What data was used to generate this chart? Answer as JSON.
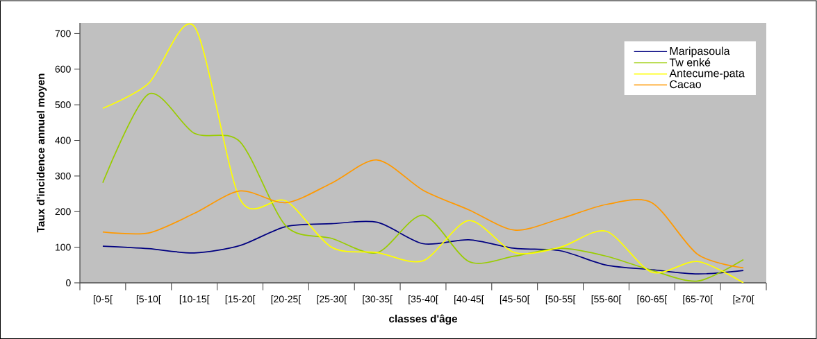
{
  "chart_data": {
    "type": "line",
    "xlabel": "classes d'âge",
    "ylabel": "Taux d'incidence annuel moyen",
    "categories": [
      "[0-5[",
      "[5-10[",
      "[10-15[",
      "[15-20[",
      "[20-25[",
      "[25-30[",
      "[30-35[",
      "[35-40[",
      "[40-45[",
      "[45-50[",
      "[50-55[",
      "[55-60[",
      "[60-65[",
      "[65-70[",
      "[≥70["
    ],
    "series": [
      {
        "name": "Maripasoula",
        "color": "#000080",
        "values": [
          103,
          96,
          84,
          105,
          158,
          166,
          170,
          110,
          121,
          97,
          90,
          50,
          37,
          25,
          35
        ]
      },
      {
        "name": "Tw enké",
        "color": "#99cc00",
        "values": [
          281,
          530,
          420,
          396,
          160,
          125,
          85,
          190,
          60,
          75,
          97,
          75,
          35,
          5,
          65
        ]
      },
      {
        "name": "Antecume-pata",
        "color": "#ffff00",
        "values": [
          490,
          560,
          720,
          235,
          230,
          100,
          85,
          62,
          175,
          85,
          100,
          145,
          30,
          60,
          0
        ]
      },
      {
        "name": "Cacao",
        "color": "#ff9900",
        "values": [
          143,
          140,
          195,
          258,
          225,
          280,
          345,
          260,
          205,
          148,
          180,
          220,
          225,
          80,
          42
        ]
      }
    ],
    "ylim": [
      0,
      730
    ],
    "yticks": [
      0,
      100,
      200,
      300,
      400,
      500,
      600,
      700
    ],
    "legend": "top right",
    "marker": "none",
    "line_style": "solid"
  }
}
